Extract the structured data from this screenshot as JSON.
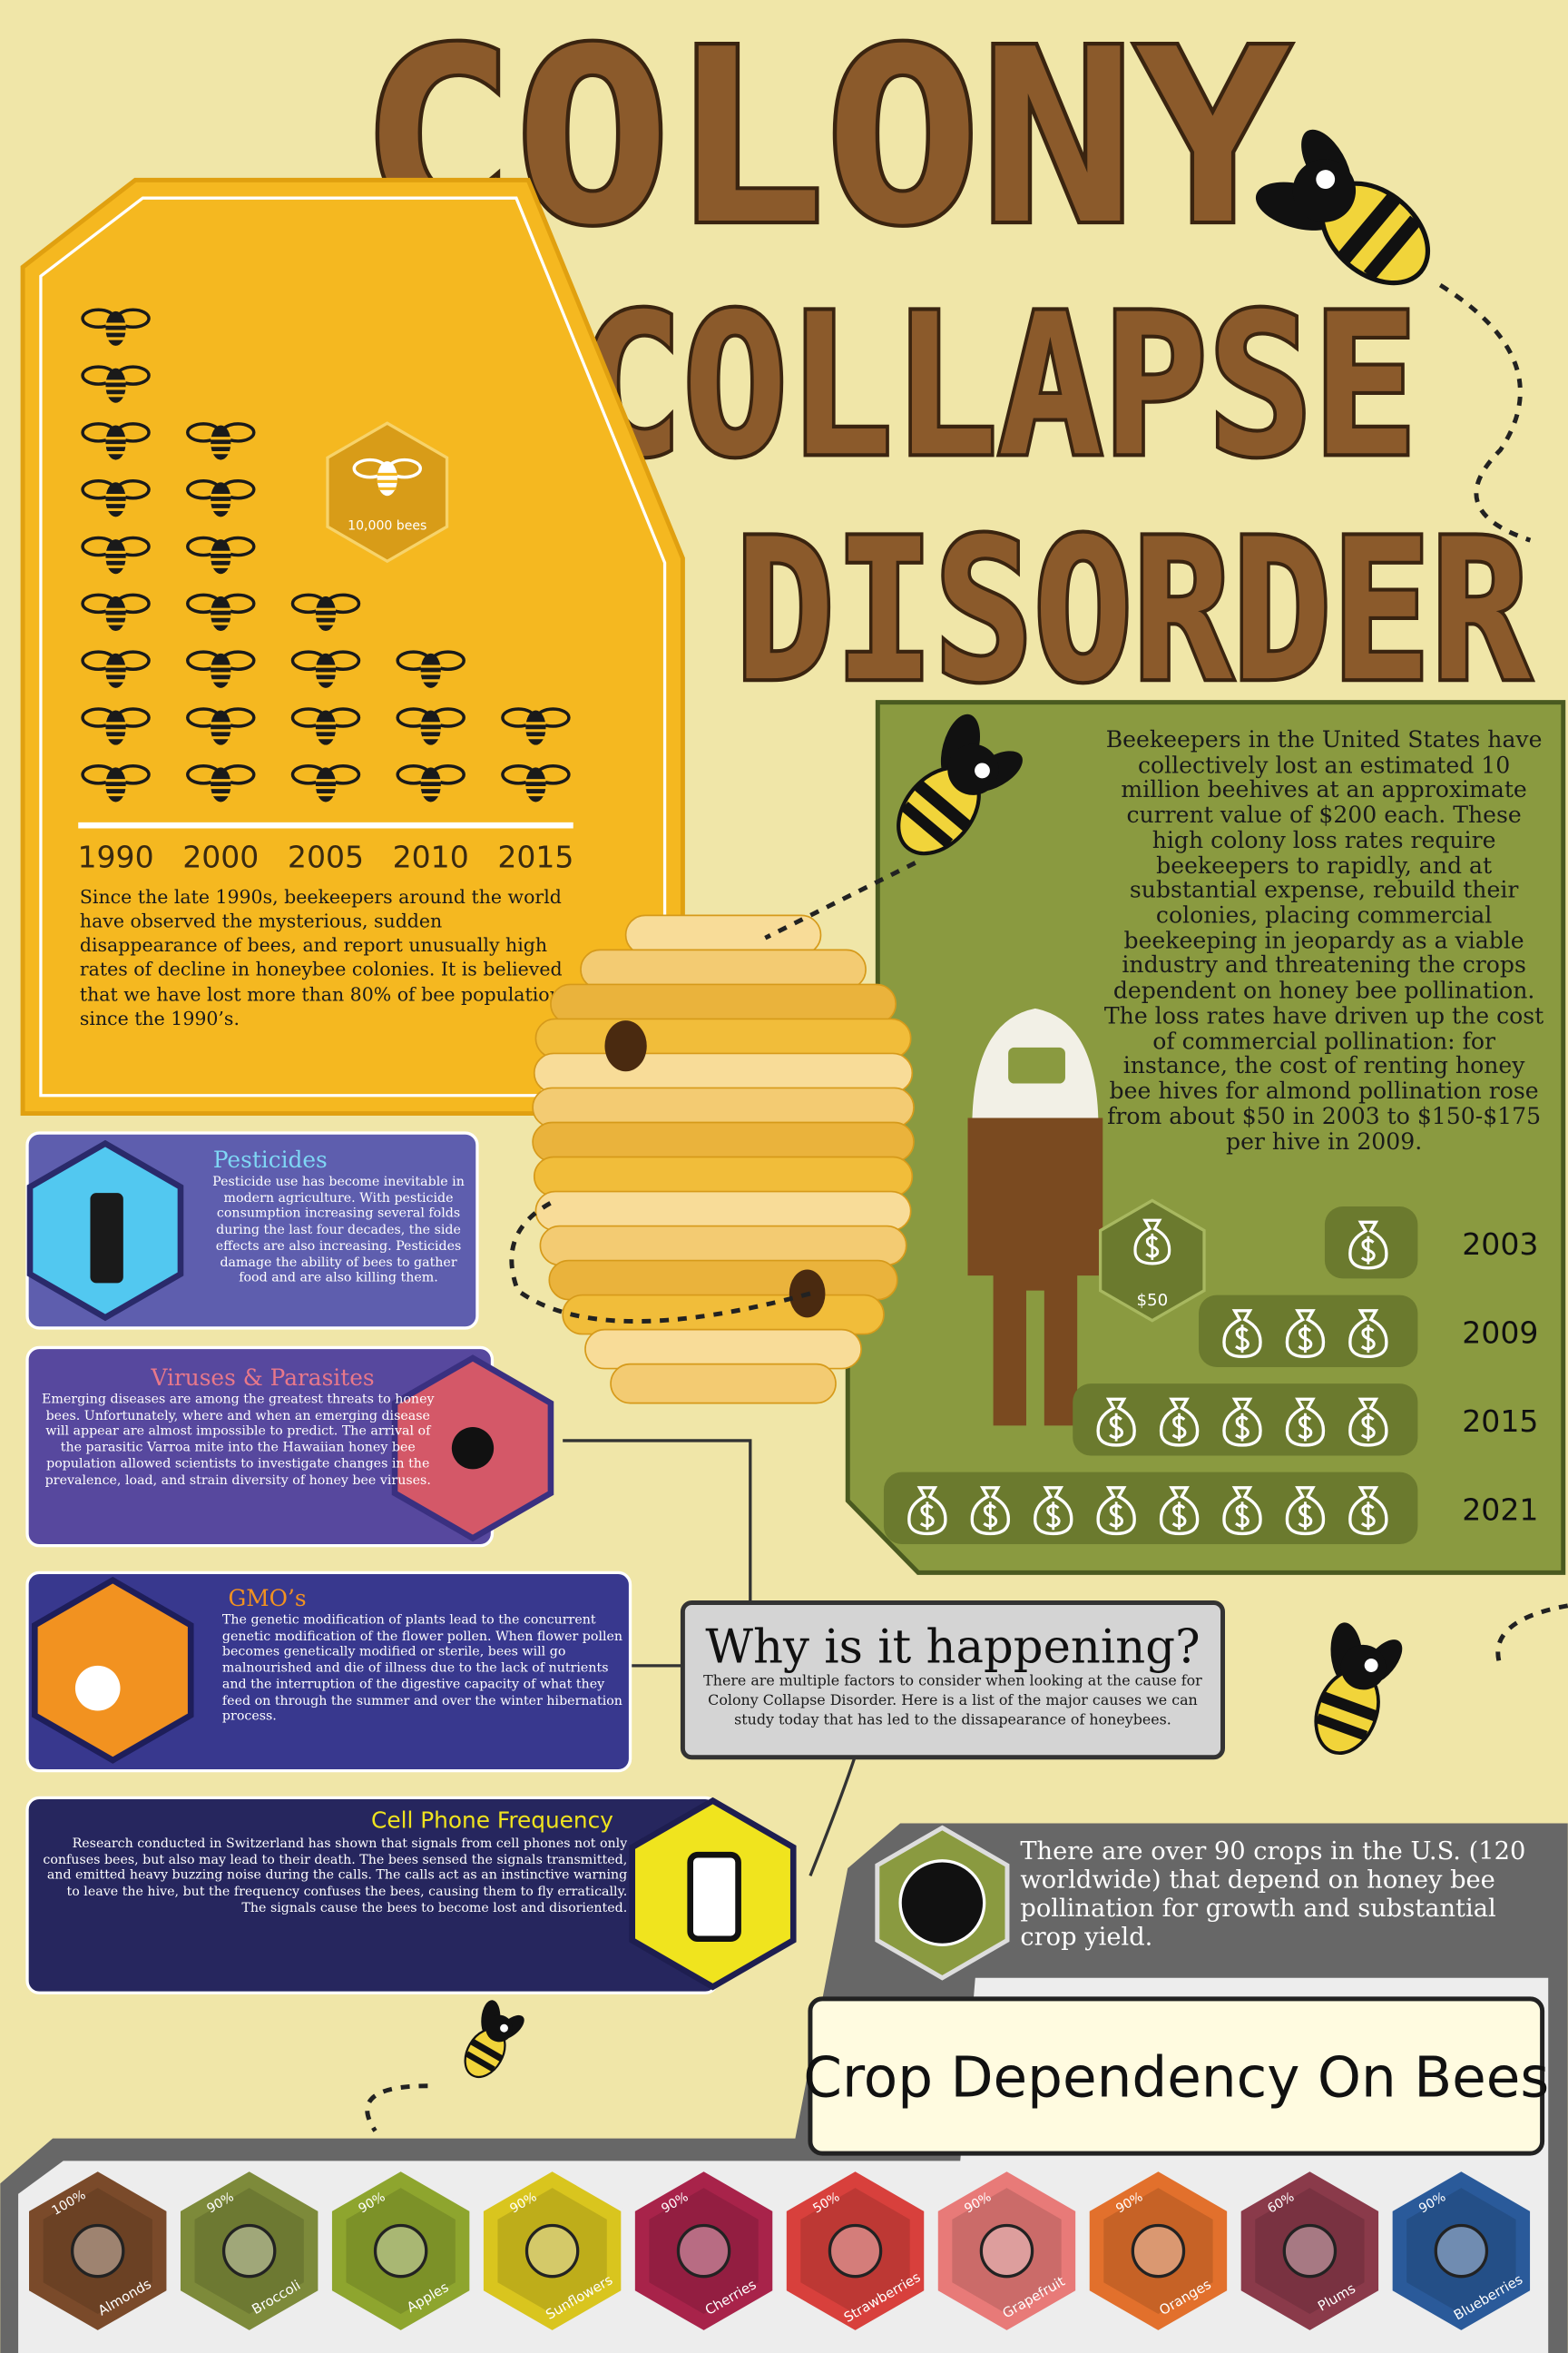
{
  "title": {
    "line1": "COLONY",
    "line2": "COLLAPSE",
    "line3": "DISORDER"
  },
  "bee_decline": {
    "legend": "10,000 bees",
    "years": [
      {
        "label": "1990",
        "count": 9
      },
      {
        "label": "2000",
        "count": 7
      },
      {
        "label": "2005",
        "count": 4
      },
      {
        "label": "2010",
        "count": 3
      },
      {
        "label": "2015",
        "count": 2
      }
    ],
    "text": "Since the late 1990s, beekeepers around the world have observed the mysterious, sudden disappearance of bees, and report unusually high rates of decline in honeybee colonies. It is believed that we have lost more than 80% of bee population since the 1990’s."
  },
  "cost": {
    "text": "Beekeepers in the United States have collectively lost an estimated 10 million beehives at an approximate current value of $200 each. These high colony loss rates require beekeepers to rapidly, and at substantial expense, rebuild their colonies, placing commercial beekeeping in jeopardy as a viable industry and threatening the crops dependent on honey bee pollination. The loss rates have driven up the cost of commercial pollination: for instance, the cost of renting honey bee hives for almond pollination rose from about $50 in 2003 to $150-$175 per hive in 2009.",
    "legend": "$50",
    "years": [
      {
        "label": "2003",
        "count": 1
      },
      {
        "label": "2009",
        "count": 3
      },
      {
        "label": "2015",
        "count": 5
      },
      {
        "label": "2021",
        "count": 8
      }
    ]
  },
  "causes": [
    {
      "title": "Pesticides",
      "text": "Pesticide use has become inevitable in modern agriculture. With pesticide consumption increasing several folds during the last four decades, the side effects are also increasing. Pesticides damage the ability of bees to gather food and are also killing them."
    },
    {
      "title": "Viruses & Parasites",
      "text": "Emerging diseases are among the greatest threats to honey bees. Unfortunately, where and when an emerging disease will appear are almost impossible to predict. The arrival of the parasitic Varroa mite into the Hawaiian honey bee population allowed scientists to investigate changes in the prevalence, load, and strain diversity of honey bee viruses."
    },
    {
      "title": "GMO’s",
      "text": "The genetic modification of plants lead to the concurrent genetic modification of the flower pollen. When flower pollen becomes genetically modified or sterile, bees will go malnourished and die of illness due to the lack of nutrients and the interruption of the digestive capacity of what they feed on through the summer and over the winter hibernation process."
    },
    {
      "title": "Cell Phone Frequency",
      "text": "Research conducted in Switzerland has shown that signals from cell phones not only confuses bees, but also may lead to their death. The bees sensed the signals transmitted, and emitted heavy buzzing noise during the calls.  The calls act as an instinctive warning to leave the hive, but the frequency confuses the bees, causing them to fly erratically.  The signals cause the bees to become lost and disoriented."
    }
  ],
  "why": {
    "title": "Why is it happening?",
    "text": "There are multiple factors to consider when looking at the cause for Colony Collapse Disorder.  Here is a list of the major causes we can study today that has led to the dissapearance of honeybees."
  },
  "crops_note": "There are over 90 crops in the U.S. (120 worldwide) that depend on honey bee pollination for growth and substantial crop yield.",
  "crop_title": "Crop Dependency On Bees",
  "crops": [
    {
      "name": "Almonds",
      "percent": "100%",
      "color": "#7a4a2a"
    },
    {
      "name": "Broccoli",
      "percent": "90%",
      "color": "#7d8a3a"
    },
    {
      "name": "Apples",
      "percent": "90%",
      "color": "#8ea52e"
    },
    {
      "name": "Sunflowers",
      "percent": "90%",
      "color": "#d9c51e"
    },
    {
      "name": "Cherries",
      "percent": "90%",
      "color": "#a8234a"
    },
    {
      "name": "Strawberries",
      "percent": "50%",
      "color": "#d8403c"
    },
    {
      "name": "Grapefruit",
      "percent": "90%",
      "color": "#e87a78"
    },
    {
      "name": "Oranges",
      "percent": "90%",
      "color": "#e2702c"
    },
    {
      "name": "Plums",
      "percent": "60%",
      "color": "#8a3a4a"
    },
    {
      "name": "Blueberries",
      "percent": "90%",
      "color": "#2a5a9a"
    }
  ]
}
